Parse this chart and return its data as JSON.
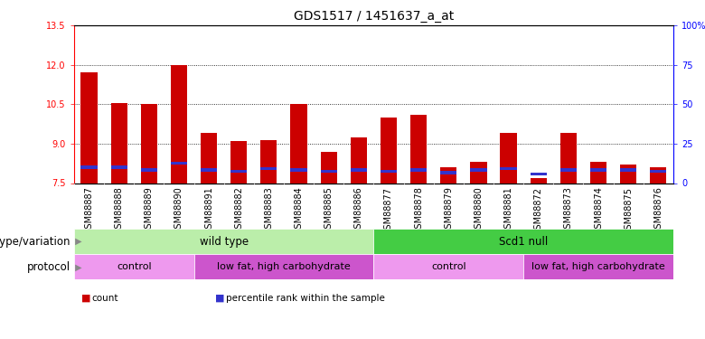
{
  "title": "GDS1517 / 1451637_a_at",
  "samples": [
    "GSM88887",
    "GSM88888",
    "GSM88889",
    "GSM88890",
    "GSM88891",
    "GSM88882",
    "GSM88883",
    "GSM88884",
    "GSM88885",
    "GSM88886",
    "GSM88877",
    "GSM88878",
    "GSM88879",
    "GSM88880",
    "GSM88881",
    "GSM88872",
    "GSM88873",
    "GSM88874",
    "GSM88875",
    "GSM88876"
  ],
  "count_values": [
    11.7,
    10.55,
    10.5,
    12.0,
    9.4,
    9.1,
    9.15,
    10.5,
    8.7,
    9.25,
    10.0,
    10.1,
    8.1,
    8.3,
    9.4,
    7.7,
    9.4,
    8.3,
    8.2,
    8.1
  ],
  "percentile_values": [
    8.1,
    8.1,
    8.0,
    8.25,
    8.0,
    7.95,
    8.05,
    8.0,
    7.95,
    8.0,
    7.95,
    8.0,
    7.9,
    8.0,
    8.05,
    7.85,
    8.0,
    8.0,
    8.0,
    7.95
  ],
  "ymin": 7.5,
  "ymax": 13.5,
  "yticks_left": [
    7.5,
    9.0,
    10.5,
    12.0,
    13.5
  ],
  "yticks_right_vals": [
    0,
    25,
    50,
    75,
    100
  ],
  "yticks_right_labels": [
    "0",
    "25",
    "50",
    "75",
    "100%"
  ],
  "bar_color": "#cc0000",
  "pct_color": "#3333cc",
  "bar_width": 0.55,
  "genotype_groups": [
    {
      "label": "wild type",
      "start": 0,
      "end": 10,
      "color": "#bbeeaa"
    },
    {
      "label": "Scd1 null",
      "start": 10,
      "end": 20,
      "color": "#44cc44"
    }
  ],
  "protocol_groups": [
    {
      "label": "control",
      "start": 0,
      "end": 4,
      "color": "#ee99ee"
    },
    {
      "label": "low fat, high carbohydrate",
      "start": 4,
      "end": 10,
      "color": "#cc55cc"
    },
    {
      "label": "control",
      "start": 10,
      "end": 15,
      "color": "#ee99ee"
    },
    {
      "label": "low fat, high carbohydrate",
      "start": 15,
      "end": 20,
      "color": "#cc55cc"
    }
  ],
  "legend_items": [
    {
      "label": "count",
      "color": "#cc0000"
    },
    {
      "label": "percentile rank within the sample",
      "color": "#3333cc"
    }
  ],
  "genotype_label": "genotype/variation",
  "protocol_label": "protocol",
  "background_color": "#ffffff",
  "title_fontsize": 10,
  "tick_fontsize": 7,
  "label_fontsize": 8.5,
  "legend_fontsize": 7.5,
  "pct_bar_height": 0.12,
  "xtick_bg": "#dddddd"
}
